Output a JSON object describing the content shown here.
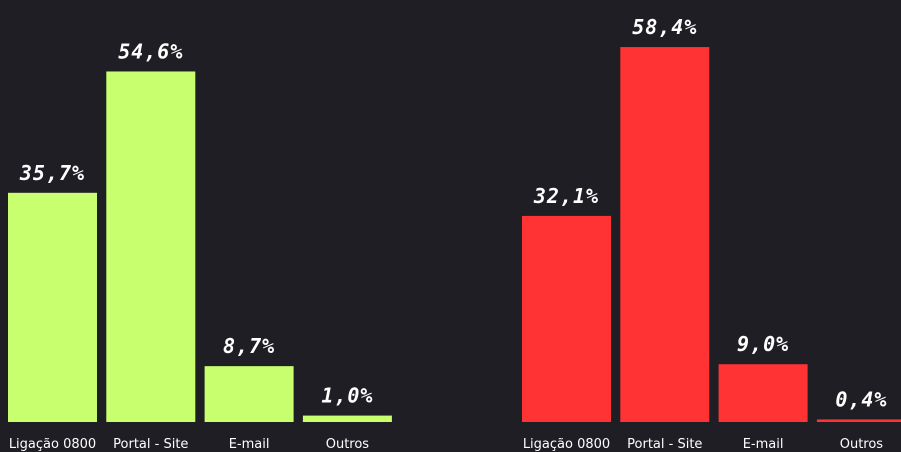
{
  "chart_data": [
    {
      "type": "bar",
      "categories": [
        "Ligação 0800",
        "Portal - Site",
        "E-mail",
        "Outros"
      ],
      "values": [
        35.7,
        54.6,
        8.7,
        1.0
      ],
      "value_labels": [
        "35,7%",
        "54,6%",
        "8,7%",
        "1,0%"
      ],
      "color": "#c8ff6e"
    },
    {
      "type": "bar",
      "categories": [
        "Ligação 0800",
        "Portal - Site",
        "E-mail",
        "Outros"
      ],
      "values": [
        32.1,
        58.4,
        9.0,
        0.4
      ],
      "value_labels": [
        "32,1%",
        "58,4%",
        "9,0%",
        "0,4%"
      ],
      "color": "#ff3333"
    }
  ]
}
